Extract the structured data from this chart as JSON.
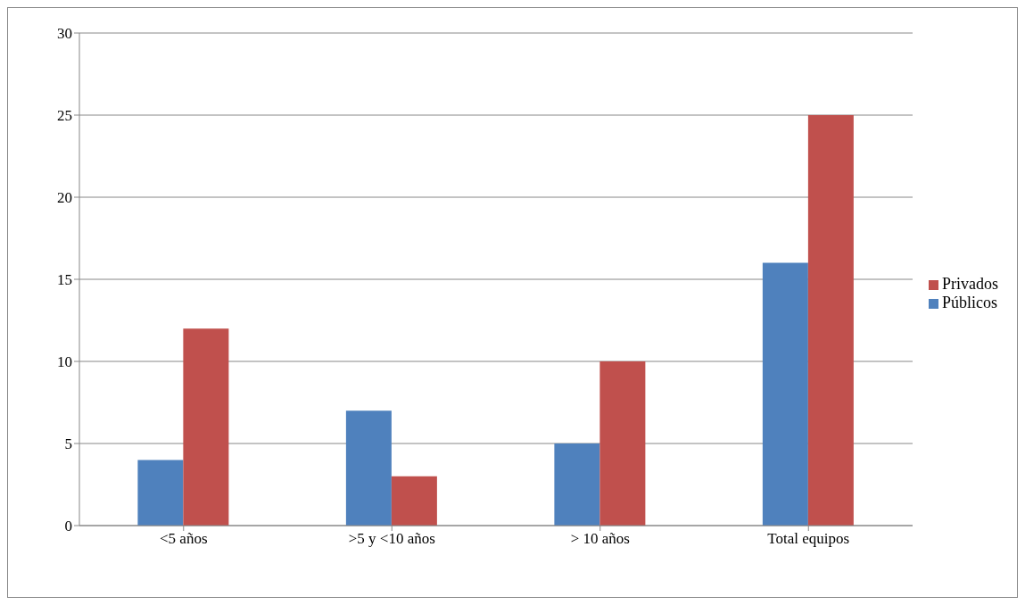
{
  "chart_data": {
    "type": "bar",
    "categories": [
      "<5 años",
      ">5 y <10 años",
      "> 10 años",
      "Total equipos"
    ],
    "series": [
      {
        "name": "Públicos",
        "color": "#4f81bd",
        "values": [
          4,
          7,
          5,
          16
        ]
      },
      {
        "name": "Privados",
        "color": "#c0504d",
        "values": [
          12,
          3,
          10,
          25
        ]
      }
    ],
    "ylim": [
      0,
      30
    ],
    "yticks": [
      0,
      5,
      10,
      15,
      20,
      25,
      30
    ],
    "grid": "y",
    "legend": "right"
  }
}
